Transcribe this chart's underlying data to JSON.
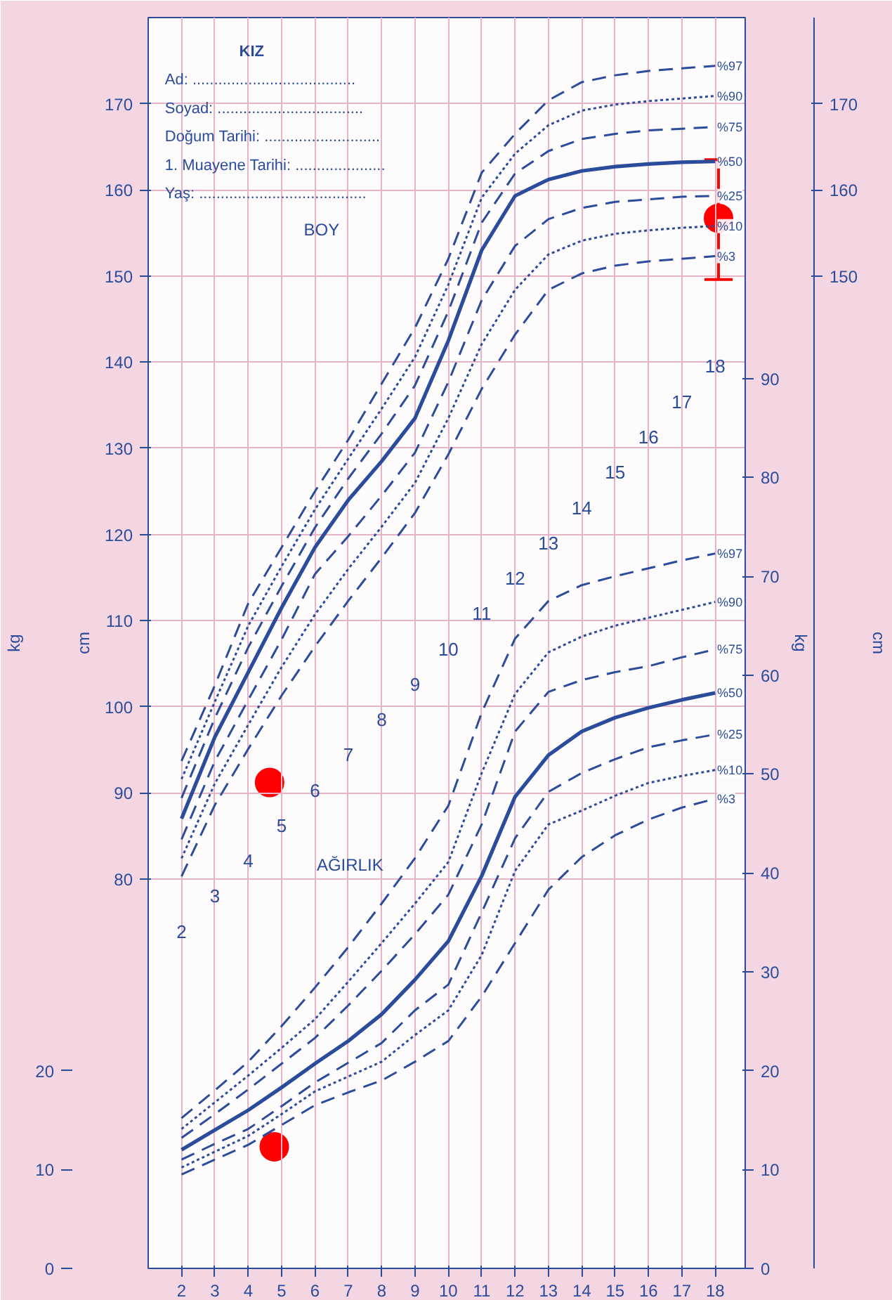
{
  "chart_data": {
    "type": "line",
    "x": [
      2,
      3,
      4,
      5,
      6,
      7,
      8,
      9,
      10,
      11,
      12,
      13,
      14,
      15,
      16,
      17,
      18
    ],
    "xlim": [
      1,
      18.9
    ],
    "xticks": [
      2,
      3,
      4,
      5,
      6,
      7,
      8,
      9,
      10,
      11,
      12,
      13,
      14,
      15,
      16,
      17,
      18
    ],
    "ylim": [
      34.8,
      180
    ],
    "yticks": [
      80,
      90,
      100,
      110,
      120,
      130,
      140,
      150,
      160,
      170
    ],
    "ylabel": "cm",
    "y2lim": [
      0,
      126.5
    ],
    "y2ticks": [
      0,
      10,
      20,
      30,
      40,
      50,
      60,
      70,
      80,
      90
    ],
    "y2label": "kg",
    "y3lim": [
      34.8,
      180
    ],
    "y3ticks": [
      150,
      160,
      170
    ],
    "y3label": "cm",
    "grid": true,
    "series": [
      {
        "name": "%97",
        "color": "#2b4c9b",
        "line_style": "dashed",
        "values": [
          93.7,
          102.5,
          112,
          118.5,
          125,
          131,
          137.5,
          144,
          152,
          162,
          166.5,
          170.4,
          172.5,
          173.3,
          173.8,
          174.1,
          174.4
        ]
      },
      {
        "name": "%90",
        "color": "#2b4c9b",
        "line_style": "dotted",
        "values": [
          91.6,
          100.6,
          109.4,
          116.3,
          122.9,
          128.8,
          134.6,
          140.6,
          149.0,
          159.1,
          164.2,
          167.5,
          169.2,
          169.9,
          170.3,
          170.6,
          170.9
        ]
      },
      {
        "name": "%75",
        "color": "#2b4c9b",
        "line_style": "dashed",
        "values": [
          89.4,
          98.7,
          106.9,
          114.0,
          120.8,
          126.5,
          131.7,
          137.3,
          145.9,
          156.2,
          161.9,
          164.5,
          165.9,
          166.5,
          166.9,
          167.1,
          167.3
        ]
      },
      {
        "name": "%50",
        "color": "#2b4c9b",
        "line_style": "solid",
        "values": [
          87,
          96.5,
          104,
          111.5,
          118.5,
          124,
          128.5,
          133.5,
          142.5,
          153,
          159.3,
          161.2,
          162.2,
          162.7,
          163.0,
          163.2,
          163.3
        ]
      },
      {
        "name": "%25",
        "color": "#2b4c9b",
        "line_style": "dashed",
        "values": [
          84.6,
          93.7,
          100.8,
          107.8,
          115.4,
          119.8,
          124.5,
          129.5,
          137.7,
          147.2,
          153.5,
          156.6,
          157.9,
          158.6,
          158.9,
          159.2,
          159.3
        ]
      },
      {
        "name": "%10",
        "color": "#2b4c9b",
        "line_style": "dotted",
        "values": [
          82.4,
          91.1,
          97.9,
          104.6,
          110.7,
          116.0,
          120.9,
          126.0,
          133.5,
          142.1,
          148.4,
          152.5,
          154.1,
          154.9,
          155.3,
          155.6,
          155.8
        ]
      },
      {
        "name": "%3",
        "color": "#2b4c9b",
        "line_style": "dashed",
        "values": [
          80.3,
          88.6,
          95.1,
          101.3,
          107,
          112.3,
          117.3,
          122.5,
          129.3,
          136.9,
          143.2,
          148.4,
          150.3,
          151.2,
          151.7,
          152.0,
          152.3
        ]
      },
      {
        "name": "%97",
        "color": "#2b4c9b",
        "axis": "y2",
        "line_style": "dashed",
        "values": [
          15.2,
          18.0,
          20.9,
          24.5,
          28.4,
          32.5,
          36.9,
          41.5,
          46.8,
          56.2,
          63.7,
          67.5,
          69.1,
          70.0,
          70.8,
          71.6,
          72.3
        ]
      },
      {
        "name": "%90",
        "color": "#2b4c9b",
        "axis": "y2",
        "line_style": "dotted",
        "values": [
          14.1,
          16.8,
          19.5,
          22.3,
          25.2,
          29.0,
          32.9,
          36.9,
          41.1,
          50.1,
          58.1,
          62.3,
          63.9,
          65.0,
          65.8,
          66.6,
          67.4
        ]
      },
      {
        "name": "%75",
        "color": "#2b4c9b",
        "axis": "y2",
        "line_style": "dashed",
        "values": [
          13.2,
          15.6,
          18.1,
          20.7,
          23.3,
          26.6,
          30.1,
          33.8,
          37.8,
          44.9,
          54.3,
          58.3,
          59.5,
          60.3,
          60.9,
          61.8,
          62.6
        ]
      },
      {
        "name": "%50",
        "color": "#2b4c9b",
        "axis": "y2",
        "line_style": "solid",
        "values": [
          12.0,
          14.0,
          16.0,
          18.3,
          20.7,
          23.0,
          25.7,
          29.2,
          33.1,
          39.7,
          47.7,
          51.9,
          54.3,
          55.7,
          56.7,
          57.5,
          58.2
        ]
      },
      {
        "name": "%25",
        "color": "#2b4c9b",
        "axis": "y2",
        "line_style": "dashed",
        "values": [
          11.0,
          12.6,
          14.1,
          16.4,
          18.8,
          20.8,
          22.8,
          26.1,
          28.7,
          36.0,
          43.5,
          48.2,
          50.1,
          51.5,
          52.7,
          53.4,
          54.0
        ]
      },
      {
        "name": "%10",
        "color": "#2b4c9b",
        "axis": "y2",
        "line_style": "dotted",
        "values": [
          10.2,
          11.8,
          13.4,
          15.6,
          17.9,
          19.4,
          20.9,
          23.6,
          26.1,
          31.7,
          40.2,
          44.9,
          46.3,
          47.8,
          49.1,
          49.8,
          50.4
        ]
      },
      {
        "name": "%3",
        "color": "#2b4c9b",
        "axis": "y2",
        "line_style": "dashed",
        "values": [
          9.5,
          11.0,
          12.5,
          14.5,
          16.5,
          17.8,
          19.0,
          20.9,
          23.0,
          27.5,
          32.9,
          38.3,
          41.6,
          43.8,
          45.4,
          46.6,
          47.5
        ]
      },
      {
        "type": "scatter",
        "color": "#ff0000",
        "marker": "circle",
        "x": [
          4.64,
          18.1
        ],
        "values": [
          91.2,
          156.7
        ],
        "errors": [
          null,
          [
            149.6,
            163.5
          ]
        ]
      },
      {
        "type": "scatter",
        "color": "#ff0000",
        "marker": "circle",
        "axis": "y2",
        "x": [
          4.78
        ],
        "values": [
          12.3
        ]
      }
    ],
    "annotations": [
      "KIZ",
      "Ad: ......................................",
      "Soyad: ..................................",
      "Doğum Tarihi: ...........................",
      "1. Muayene Tarihi: .....................",
      "Yaş: .......................................",
      "BOY",
      "AĞIRLIK",
      "kg",
      "0",
      "10",
      "20",
      "2",
      "3",
      "4",
      "5",
      "6",
      "7",
      "8",
      "9",
      "10",
      "11",
      "12",
      "13",
      "14",
      "15",
      "16",
      "17",
      "18"
    ]
  }
}
